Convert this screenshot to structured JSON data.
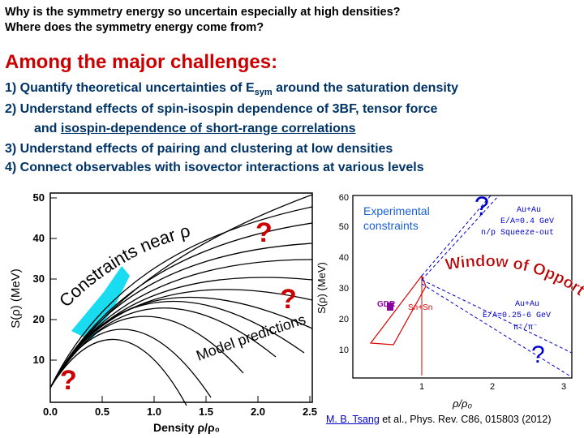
{
  "questions": {
    "line1": "Why is the symmetry energy so uncertain especially at high densities?",
    "line2": "Where does the symmetry energy come from?"
  },
  "heading": "Among the major challenges:",
  "challenges": {
    "item1_prefix": "1)  Quantify theoretical uncertainties of E",
    "item1_sub": "sym",
    "item1_suffix": " around the saturation density",
    "item2": "2)  Understand effects of spin-isospin dependence of 3BF, tensor force",
    "item2b_prefix": "and ",
    "item2b_link": "isospin-dependence of short-range correlations",
    "item3": "3) Understand effects of pairing and clustering at low densities",
    "item4": "4) Connect observables with isovector interactions at various levels"
  },
  "left_chart": {
    "ylabel": "S(ρ) (MeV)",
    "xlabel": "Density ρ/ρ₀",
    "yticks": [
      "10",
      "20",
      "30",
      "40",
      "50"
    ],
    "xticks": [
      "0.0",
      "0.5",
      "1.0",
      "1.5",
      "2.0",
      "2.5"
    ],
    "annotation_constraints": "Constraints near ρ₀",
    "annotation_predictions": "Model predictions",
    "question_marks": [
      "?",
      "?",
      "?"
    ]
  },
  "right_chart": {
    "ylabel": "S(ρ) (MeV)",
    "xlabel": "ρ/ρ₀",
    "yticks": [
      "10",
      "20",
      "30",
      "40",
      "50",
      "60"
    ],
    "xticks": [
      "1",
      "2",
      "3"
    ],
    "exp_label_1": "Experimental",
    "exp_label_2": "constraints",
    "window_label": "Window of Opportunities",
    "box1_line1": "Au+Au",
    "box1_line2": "E/A=0.4 GeV",
    "box1_line3": "n/p Squeeze-out",
    "box2_line1": "Au+Au",
    "box2_line2": "E/A=0.25-6 GeV",
    "box2_line3": "π⁺/π⁻",
    "gdr": "GDR",
    "snsn": "Sn+Sn",
    "question_marks": [
      "?",
      "?"
    ]
  },
  "reference": {
    "authors": "M. B. Tsang",
    "rest": " et al., Phys. Rev. C86, 015803 (2012)"
  },
  "colors": {
    "heading": "#cc0000",
    "items": "#003366",
    "qmark": "#cc0000",
    "band": "#00d8f0",
    "exp_label": "#1a5fd0",
    "blue_box": "#0000cc",
    "red_box": "#dd0000"
  }
}
